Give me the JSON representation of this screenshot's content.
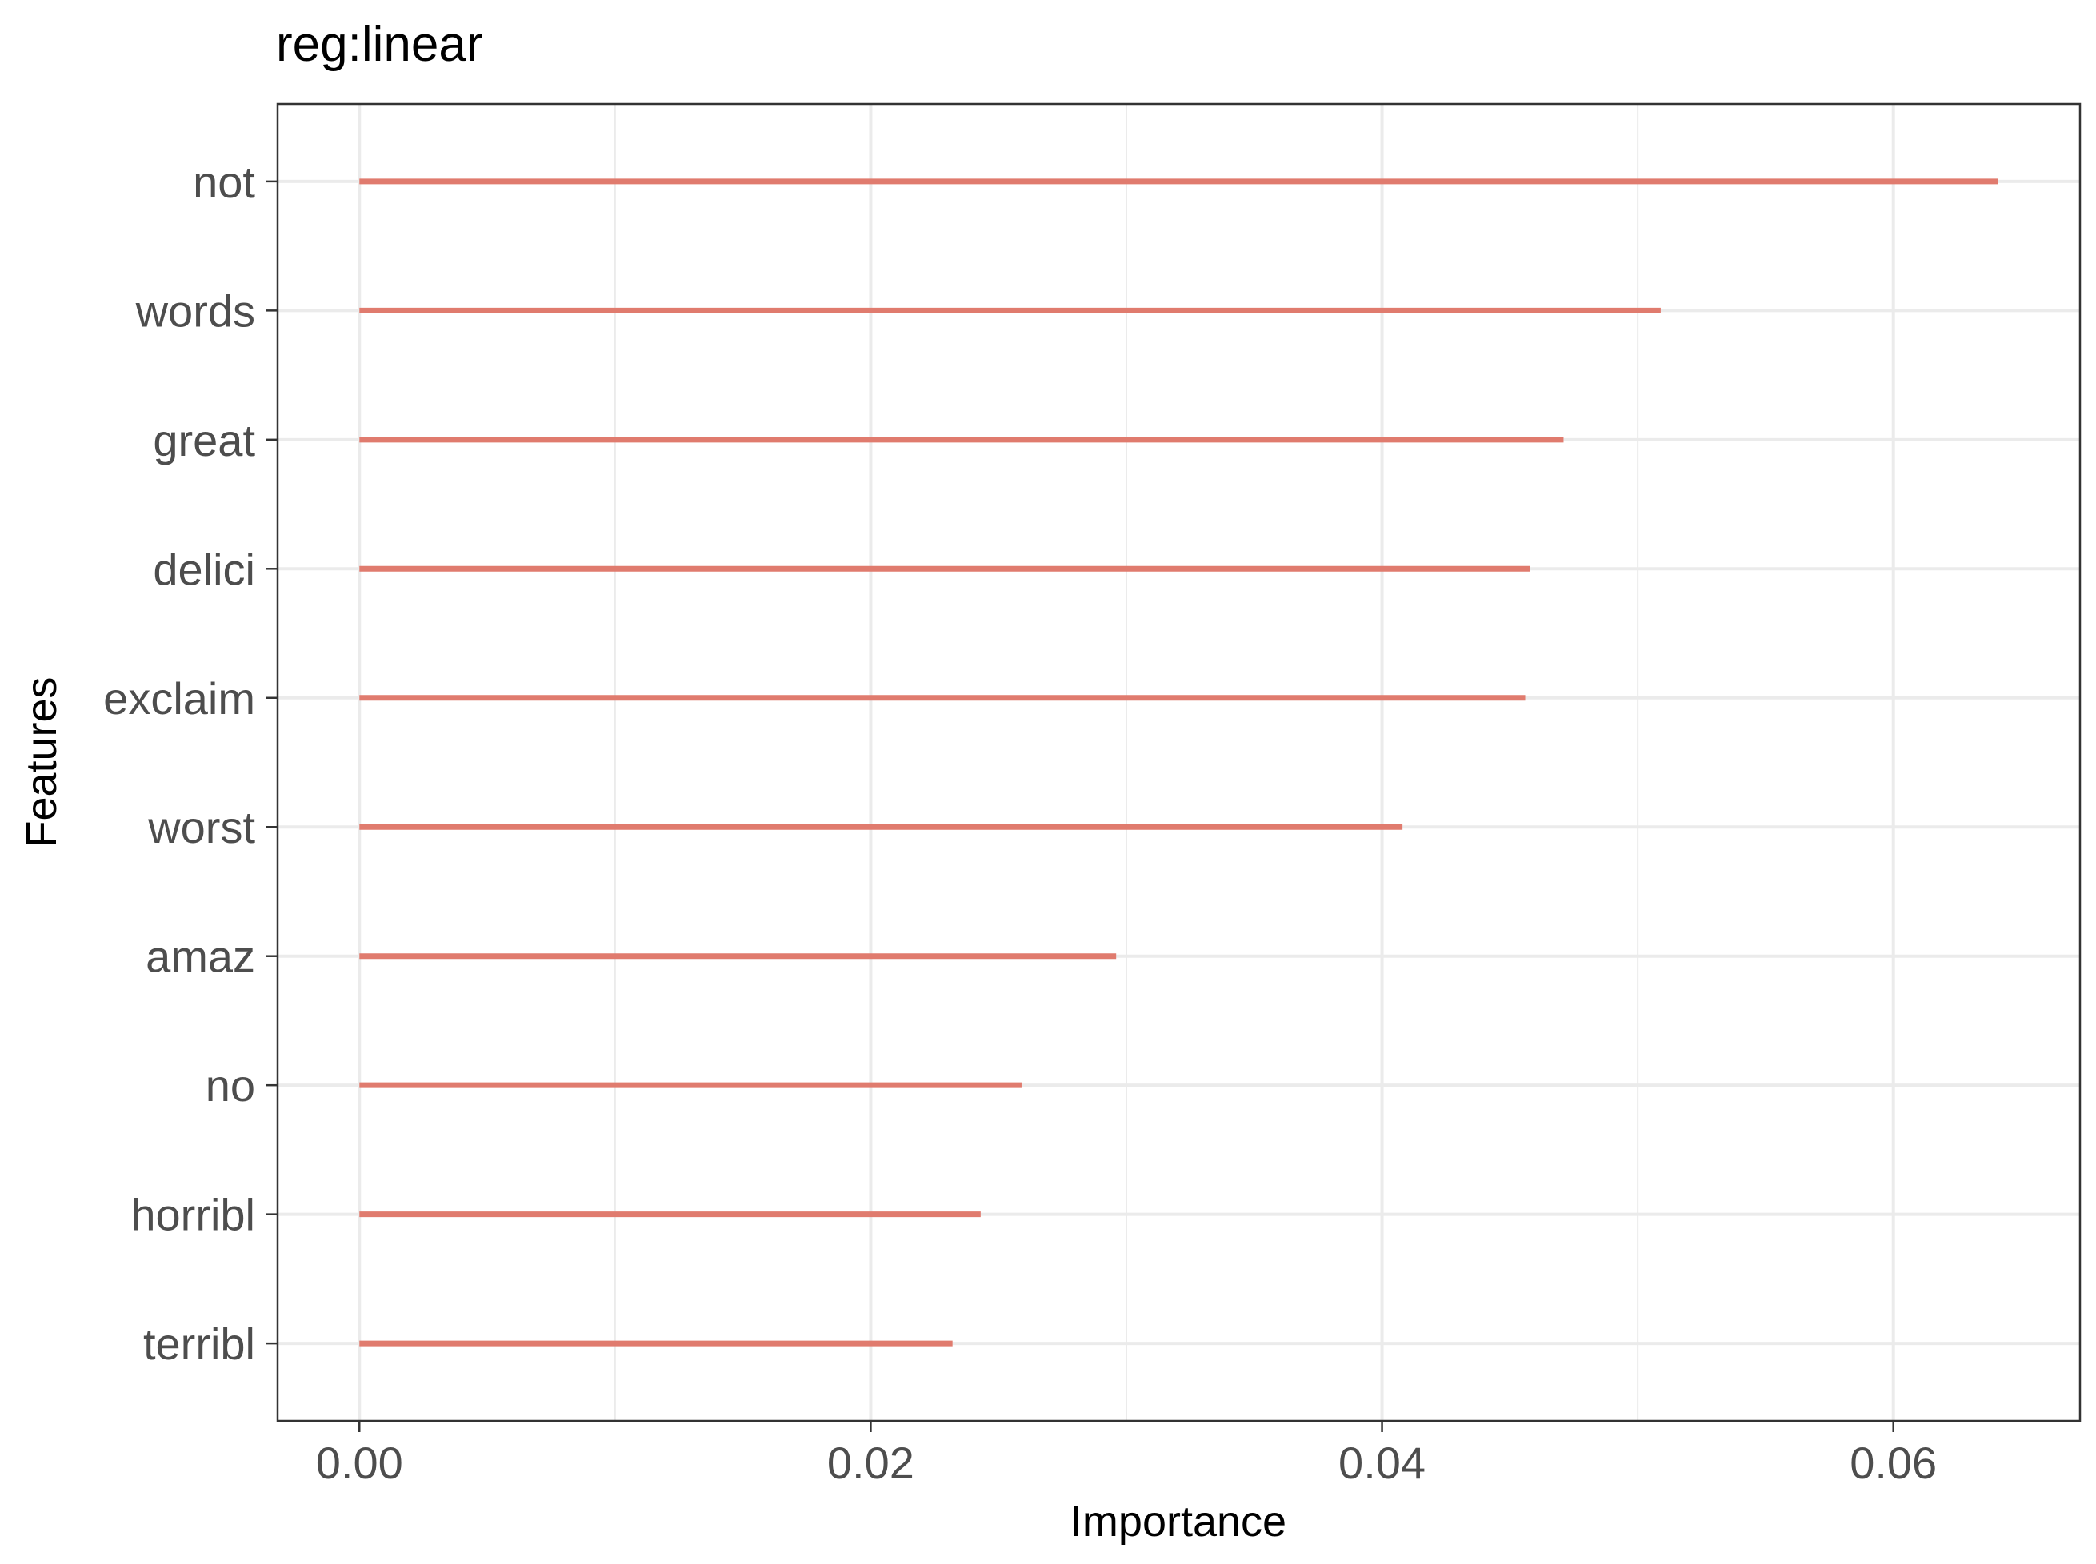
{
  "chart_data": {
    "type": "bar",
    "orientation": "horizontal",
    "title": "reg:linear",
    "xlabel": "Importance",
    "ylabel": "Features",
    "categories": [
      "not",
      "words",
      "great",
      "delici",
      "exclaim",
      "worst",
      "amaz",
      "no",
      "horribl",
      "terribl"
    ],
    "values": [
      0.0641,
      0.0509,
      0.0471,
      0.0458,
      0.0456,
      0.0408,
      0.0296,
      0.0259,
      0.0243,
      0.0232
    ],
    "xlim": [
      -0.0032,
      0.0673
    ],
    "xticks": [
      0.0,
      0.02,
      0.04,
      0.06
    ],
    "xtick_labels": [
      "0.00",
      "0.02",
      "0.04",
      "0.06"
    ],
    "grid": true,
    "bar_color": "#E07B6E",
    "background": "#ffffff",
    "gridline_color": "#EBEBEB",
    "panel_border_color": "#333333"
  }
}
